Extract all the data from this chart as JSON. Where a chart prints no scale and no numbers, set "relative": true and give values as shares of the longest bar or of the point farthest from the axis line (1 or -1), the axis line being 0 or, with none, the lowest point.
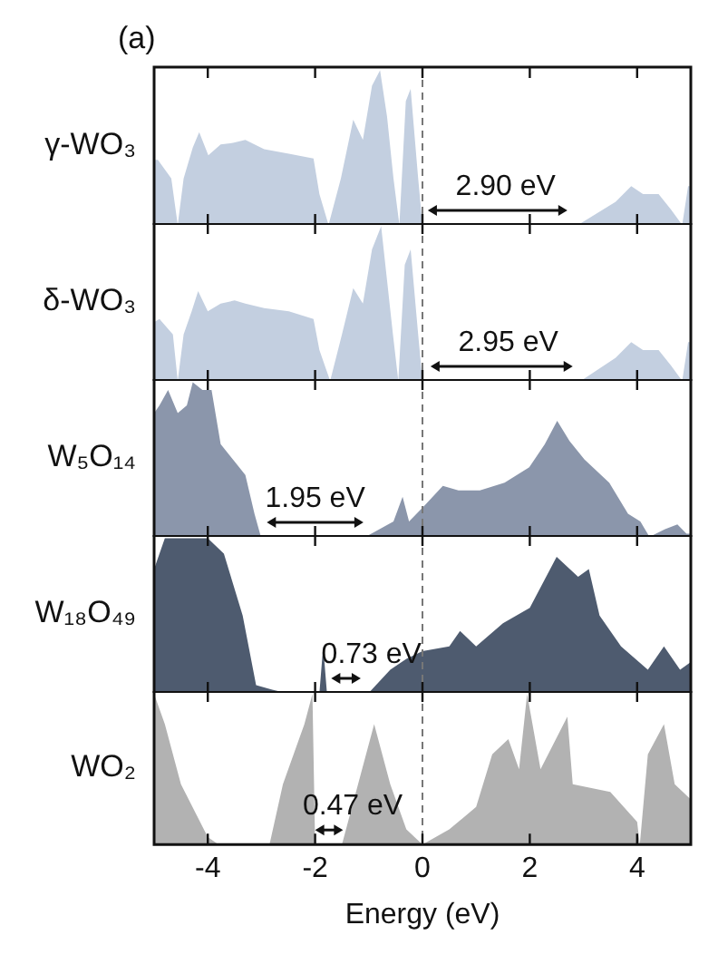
{
  "chart_data": [
    {
      "type": "area",
      "title": "(a)",
      "ylabel": "γ-WO₃",
      "relative": true,
      "xlim": [
        -5,
        5
      ],
      "xticks": [
        {
          "value": -4,
          "label": null
        },
        {
          "value": -2,
          "label": null
        },
        {
          "value": 0,
          "label": null
        },
        {
          "value": 2,
          "label": null
        },
        {
          "value": 4,
          "label": null
        }
      ],
      "tick_labels": false,
      "grid": false,
      "legend": false,
      "series": [
        {
          "color": "#c3cfe0",
          "x": [
            -5,
            -4.93,
            -4.68,
            -4.56,
            -4.45,
            -4.28,
            -4.16,
            -3.99,
            -3.76,
            -3.53,
            -3.3,
            -2.95,
            -2.49,
            -2.03,
            -1.92,
            -1.75,
            -1.52,
            -1.29,
            -1.11,
            -0.94,
            -0.79,
            -0.66,
            -0.54,
            -0.43,
            -0.31,
            -0.22,
            -0.08,
            0,
            2.9,
            3.6,
            3.89,
            4.11,
            4.4,
            4.63,
            4.84,
            4.95,
            5
          ],
          "values": [
            0.42,
            0.42,
            0.3,
            0,
            0.3,
            0.5,
            0.6,
            0.45,
            0.52,
            0.53,
            0.55,
            0.49,
            0.46,
            0.43,
            0.2,
            0,
            0.3,
            0.68,
            0.55,
            0.9,
            1,
            0.7,
            0.3,
            0,
            0.8,
            0.88,
            0.3,
            0,
            0,
            0.15,
            0.25,
            0.2,
            0.2,
            0.1,
            0,
            0.25,
            0.25
          ]
        }
      ],
      "ref_lines": [
        {
          "axis": "x",
          "value": 0,
          "color": "#777777",
          "line_style": "dashed"
        }
      ],
      "annotations": [
        "2.90 eV"
      ]
    },
    {
      "type": "area",
      "ylabel": "δ-WO₃",
      "relative": true,
      "xlim": [
        -5,
        5
      ],
      "xticks": [
        {
          "value": -4,
          "label": null
        },
        {
          "value": -2,
          "label": null
        },
        {
          "value": 0,
          "label": null
        },
        {
          "value": 2,
          "label": null
        },
        {
          "value": 4,
          "label": null
        }
      ],
      "tick_labels": false,
      "grid": false,
      "legend": false,
      "series": [
        {
          "color": "#c3cfe0",
          "x": [
            -5,
            -4.9,
            -4.65,
            -4.56,
            -4.45,
            -4.3,
            -4.18,
            -4.0,
            -3.76,
            -3.5,
            -3.3,
            -2.95,
            -2.49,
            -2.03,
            -1.92,
            -1.72,
            -1.5,
            -1.29,
            -1.11,
            -0.94,
            -0.77,
            -0.66,
            -0.55,
            -0.45,
            -0.33,
            -0.22,
            -0.08,
            0,
            2.95,
            3.6,
            3.89,
            4.11,
            4.4,
            4.63,
            4.84,
            4.95,
            5
          ],
          "values": [
            0.38,
            0.4,
            0.3,
            0,
            0.3,
            0.45,
            0.58,
            0.45,
            0.5,
            0.52,
            0.5,
            0.47,
            0.45,
            0.4,
            0.2,
            0,
            0.3,
            0.6,
            0.5,
            0.85,
            1,
            0.65,
            0.3,
            0,
            0.75,
            0.85,
            0.3,
            0,
            0,
            0.15,
            0.25,
            0.2,
            0.2,
            0.1,
            0,
            0.25,
            0.25
          ]
        }
      ],
      "ref_lines": [
        {
          "axis": "x",
          "value": 0,
          "color": "#777777",
          "line_style": "dashed"
        }
      ],
      "annotations": [
        "2.95 eV"
      ]
    },
    {
      "type": "area",
      "ylabel": "W₅O₁₄",
      "relative": true,
      "xlim": [
        -5,
        5
      ],
      "xticks": [
        {
          "value": -4,
          "label": null
        },
        {
          "value": -2,
          "label": null
        },
        {
          "value": 0,
          "label": null
        },
        {
          "value": 2,
          "label": null
        },
        {
          "value": 4,
          "label": null
        }
      ],
      "tick_labels": false,
      "grid": false,
      "legend": false,
      "series": [
        {
          "color": "#8b96ab",
          "x": [
            -5,
            -4.9,
            -4.74,
            -4.56,
            -4.39,
            -4.28,
            -4.1,
            -3.93,
            -3.76,
            -3.53,
            -3.3,
            -3.13,
            -3.01,
            -1.06,
            -0.54,
            -0.37,
            -0.25,
            0.03,
            0.38,
            0.67,
            1.07,
            1.53,
            1.99,
            2.28,
            2.51,
            2.74,
            3.02,
            3.48,
            3.83,
            4.06,
            4.23,
            4.52,
            4.75,
            4.92,
            5
          ],
          "values": [
            0.8,
            0.85,
            0.95,
            0.8,
            0.85,
            1,
            0.95,
            0.95,
            0.6,
            0.5,
            0.4,
            0.15,
            0,
            0,
            0.1,
            0.26,
            0.1,
            0.2,
            0.33,
            0.3,
            0.3,
            0.35,
            0.45,
            0.6,
            0.75,
            0.62,
            0.5,
            0.35,
            0.15,
            0.1,
            0,
            0.05,
            0.08,
            0.02,
            0.02
          ]
        }
      ],
      "ref_lines": [
        {
          "axis": "x",
          "value": 0,
          "color": "#777777",
          "line_style": "dashed"
        }
      ],
      "annotations": [
        "1.95 eV"
      ]
    },
    {
      "type": "area",
      "ylabel": "W₁₈O₄₉",
      "relative": true,
      "xlim": [
        -5,
        5
      ],
      "xticks": [
        {
          "value": -4,
          "label": null
        },
        {
          "value": -2,
          "label": null
        },
        {
          "value": 0,
          "label": null
        },
        {
          "value": 2,
          "label": null
        },
        {
          "value": 4,
          "label": null
        }
      ],
      "tick_labels": false,
      "grid": false,
      "legend": false,
      "series": [
        {
          "color": "#4e5b6f",
          "x": [
            -5,
            -4.8,
            -4.0,
            -3.7,
            -3.35,
            -3.1,
            -2.8,
            -2.55,
            -1.92,
            -1.85,
            -1.78,
            -1.0,
            -0.6,
            -0.3,
            0,
            0.5,
            0.7,
            1.0,
            1.5,
            2.0,
            2.5,
            2.9,
            3.1,
            3.3,
            3.7,
            4.2,
            4.5,
            4.8,
            5
          ],
          "values": [
            0.8,
            1,
            1,
            0.9,
            0.5,
            0.05,
            0.02,
            0,
            0,
            0.3,
            0,
            0,
            0.15,
            0.22,
            0.27,
            0.3,
            0.4,
            0.3,
            0.45,
            0.55,
            0.88,
            0.75,
            0.8,
            0.5,
            0.3,
            0.15,
            0.3,
            0.15,
            0.2
          ]
        }
      ],
      "ref_lines": [
        {
          "axis": "x",
          "value": 0,
          "color": "#777777",
          "line_style": "dashed"
        }
      ],
      "annotations": [
        "0.73 eV"
      ]
    },
    {
      "type": "area",
      "ylabel": "WO₂",
      "xlabel": "Energy (eV)",
      "relative": true,
      "xlim": [
        -5,
        5
      ],
      "xticks": [
        -4,
        -2,
        0,
        2,
        4
      ],
      "tick_labels": "x",
      "grid": false,
      "legend": false,
      "series": [
        {
          "color": "#b2b2b2",
          "x": [
            -5,
            -4.8,
            -4.5,
            -4.0,
            -3.8,
            -2.85,
            -2.6,
            -2.3,
            -2.2,
            -2.05,
            -2.0,
            -1.5,
            -1.2,
            -0.9,
            -0.6,
            -0.3,
            0,
            0.5,
            1.0,
            1.3,
            1.6,
            1.8,
            1.95,
            2.2,
            2.7,
            2.8,
            3.5,
            4.0,
            4.05,
            4.2,
            4.5,
            4.7,
            5
          ],
          "values": [
            1,
            0.8,
            0.4,
            0.05,
            0,
            0,
            0.4,
            0.7,
            0.8,
            1,
            0,
            0,
            0.4,
            0.8,
            0.4,
            0.1,
            0,
            0.1,
            0.25,
            0.6,
            0.7,
            0.5,
            1,
            0.5,
            0.85,
            0.4,
            0.35,
            0.15,
            0,
            0.6,
            0.8,
            0.4,
            0.3
          ]
        }
      ],
      "ref_lines": [
        {
          "axis": "x",
          "value": 0,
          "color": "#777777",
          "line_style": "dashed"
        }
      ],
      "annotations": [
        "0.47 eV"
      ]
    }
  ]
}
